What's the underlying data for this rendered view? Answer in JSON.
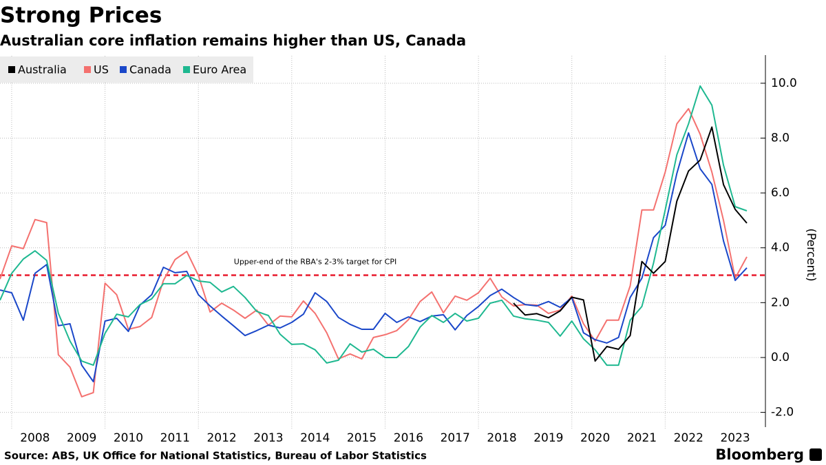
{
  "chart_data": {
    "type": "line",
    "title": "Strong Prices",
    "subtitle": "Australian core inflation remains higher than US, Canada",
    "y_label": "(Percent)",
    "source": "Source: ABS, UK Office for National Statistics, Bureau of Labor Statistics",
    "brand": "Bloomberg",
    "x": [
      2007.75,
      2008,
      2008.25,
      2008.5,
      2008.75,
      2009,
      2009.25,
      2009.5,
      2009.75,
      2010,
      2010.25,
      2010.5,
      2010.75,
      2011,
      2011.25,
      2011.5,
      2011.75,
      2012,
      2012.25,
      2012.5,
      2012.75,
      2013,
      2013.25,
      2013.5,
      2013.75,
      2014,
      2014.25,
      2014.5,
      2014.75,
      2015,
      2015.25,
      2015.5,
      2015.75,
      2016,
      2016.25,
      2016.5,
      2016.75,
      2017,
      2017.25,
      2017.5,
      2017.75,
      2018,
      2018.25,
      2018.5,
      2018.75,
      2019,
      2019.25,
      2019.5,
      2019.75,
      2020,
      2020.25,
      2020.5,
      2020.75,
      2021,
      2021.25,
      2021.5,
      2021.75,
      2022,
      2022.25,
      2022.5,
      2022.75,
      2023,
      2023.25,
      2023.5,
      2023.75
    ],
    "series": [
      {
        "name": "Australia",
        "color": "#000000",
        "values": [
          null,
          null,
          null,
          null,
          null,
          null,
          null,
          null,
          null,
          null,
          null,
          null,
          null,
          null,
          null,
          null,
          null,
          null,
          null,
          null,
          null,
          null,
          null,
          null,
          null,
          null,
          null,
          null,
          null,
          null,
          null,
          null,
          null,
          null,
          null,
          null,
          null,
          null,
          null,
          null,
          null,
          null,
          null,
          null,
          1.98,
          1.55,
          1.6,
          1.45,
          1.7,
          2.2,
          2.1,
          -0.13,
          0.4,
          0.3,
          0.8,
          3.5,
          3.07,
          3.5,
          5.7,
          6.8,
          7.2,
          8.4,
          6.3,
          5.4,
          4.9
        ]
      },
      {
        "name": "US",
        "color": "#f4716f",
        "values": [
          2.86,
          4.07,
          3.97,
          5.03,
          4.92,
          0.1,
          -0.35,
          -1.43,
          -1.28,
          2.71,
          2.29,
          1.03,
          1.13,
          1.46,
          2.81,
          3.57,
          3.87,
          2.99,
          1.66,
          1.98,
          1.73,
          1.43,
          1.73,
          1.18,
          1.51,
          1.48,
          2.06,
          1.61,
          0.9,
          -0.05,
          0.13,
          -0.05,
          0.73,
          0.83,
          0.98,
          1.38,
          2.04,
          2.39,
          1.63,
          2.24,
          2.09,
          2.36,
          2.89,
          2.21,
          1.88,
          1.93,
          1.91,
          1.61,
          1.73,
          2.24,
          1.23,
          0.6,
          1.36,
          1.36,
          2.61,
          5.38,
          5.38,
          6.76,
          8.52,
          9.07,
          8.14,
          6.76,
          5.0,
          2.89,
          3.67
        ]
      },
      {
        "name": "Canada",
        "color": "#1a47c9",
        "values": [
          2.46,
          2.36,
          1.36,
          3.07,
          3.39,
          1.16,
          1.23,
          -0.28,
          -0.88,
          1.33,
          1.43,
          0.95,
          1.91,
          2.29,
          3.29,
          3.09,
          3.14,
          2.29,
          1.88,
          1.51,
          1.16,
          0.8,
          0.98,
          1.18,
          1.08,
          1.28,
          1.58,
          2.36,
          2.04,
          1.46,
          1.21,
          1.03,
          1.03,
          1.61,
          1.28,
          1.48,
          1.31,
          1.51,
          1.56,
          1.01,
          1.53,
          1.86,
          2.26,
          2.49,
          2.19,
          1.93,
          1.88,
          2.04,
          1.83,
          2.19,
          0.9,
          0.65,
          0.53,
          0.73,
          2.19,
          2.89,
          4.37,
          4.82,
          6.71,
          8.19,
          6.88,
          6.31,
          4.25,
          2.81,
          3.27
        ]
      },
      {
        "name": "Euro Area",
        "color": "#1eb890",
        "values": [
          2.09,
          3.07,
          3.59,
          3.89,
          3.54,
          1.61,
          0.6,
          -0.13,
          -0.28,
          0.88,
          1.58,
          1.48,
          1.93,
          2.14,
          2.69,
          2.69,
          2.99,
          2.79,
          2.74,
          2.39,
          2.59,
          2.19,
          1.68,
          1.53,
          0.85,
          0.48,
          0.5,
          0.28,
          -0.2,
          -0.1,
          0.5,
          0.2,
          0.3,
          0.0,
          0.0,
          0.4,
          1.11,
          1.53,
          1.28,
          1.61,
          1.33,
          1.43,
          1.98,
          2.09,
          1.51,
          1.41,
          1.36,
          1.28,
          0.78,
          1.33,
          0.68,
          0.28,
          -0.28,
          -0.28,
          1.36,
          1.86,
          3.44,
          5.38,
          7.39,
          8.52,
          9.9,
          9.2,
          7.01,
          5.5,
          5.35
        ]
      }
    ],
    "reference_line": {
      "value": 3,
      "color": "#e8182c",
      "label": "Upper-end of the RBA's 2-3% target for CPI"
    },
    "xlim": [
      2007.75,
      2024
    ],
    "xticks": [
      {
        "value": 2008.5,
        "label": "2008"
      },
      {
        "value": 2009.5,
        "label": "2009"
      },
      {
        "value": 2010.5,
        "label": "2010"
      },
      {
        "value": 2011.5,
        "label": "2011"
      },
      {
        "value": 2012.5,
        "label": "2012"
      },
      {
        "value": 2013.5,
        "label": "2013"
      },
      {
        "value": 2014.5,
        "label": "2014"
      },
      {
        "value": 2015.5,
        "label": "2015"
      },
      {
        "value": 2016.5,
        "label": "2016"
      },
      {
        "value": 2017.5,
        "label": "2017"
      },
      {
        "value": 2018.5,
        "label": "2018"
      },
      {
        "value": 2019.5,
        "label": "2019"
      },
      {
        "value": 2020.5,
        "label": "2020"
      },
      {
        "value": 2021.5,
        "label": "2021"
      },
      {
        "value": 2022.5,
        "label": "2022"
      },
      {
        "value": 2023.5,
        "label": "2023"
      }
    ],
    "ylim": [
      -2.5,
      11
    ],
    "yticks": [
      {
        "value": -2,
        "label": "-2.0"
      },
      {
        "value": 0,
        "label": "0.0"
      },
      {
        "value": 2,
        "label": "2.0"
      },
      {
        "value": 4,
        "label": "4.0"
      },
      {
        "value": 6,
        "label": "6.0"
      },
      {
        "value": 8,
        "label": "8.0"
      },
      {
        "value": 10,
        "label": "10.0"
      }
    ],
    "grid": true,
    "legend": "top-left"
  }
}
